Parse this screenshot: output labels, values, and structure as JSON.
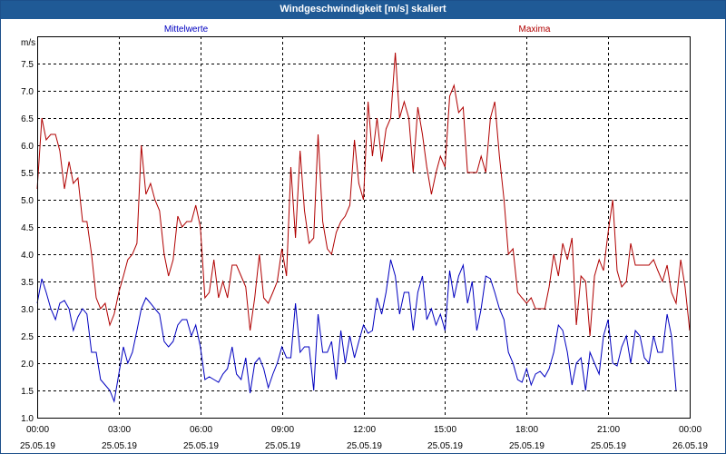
{
  "window": {
    "title": "Windgeschwindigkeit [m/s] skaliert"
  },
  "chart_data": {
    "type": "line",
    "title": "Windgeschwindigkeit [m/s] skaliert",
    "ylabel": "m/s",
    "xlabel": "",
    "ylim": [
      1.0,
      8.0
    ],
    "xlim": [
      0,
      24
    ],
    "grid": true,
    "legend_placement": "top",
    "y_ticks": [
      "1.0",
      "1.5",
      "2.0",
      "2.5",
      "3.0",
      "3.5",
      "4.0",
      "4.5",
      "5.0",
      "5.5",
      "6.0",
      "6.5",
      "7.0",
      "7.5"
    ],
    "x_ticks": [
      {
        "time": "00:00",
        "date": "25.05.19"
      },
      {
        "time": "03:00",
        "date": "25.05.19"
      },
      {
        "time": "06:00",
        "date": "25.05.19"
      },
      {
        "time": "09:00",
        "date": "25.05.19"
      },
      {
        "time": "12:00",
        "date": "25.05.19"
      },
      {
        "time": "15:00",
        "date": "25.05.19"
      },
      {
        "time": "18:00",
        "date": "25.05.19"
      },
      {
        "time": "21:00",
        "date": "25.05.19"
      },
      {
        "time": "00:00",
        "date": "26.05.19"
      }
    ],
    "series": [
      {
        "name": "Mittelwerte",
        "color": "#0000c0",
        "points": [
          [
            0.0,
            3.1
          ],
          [
            0.17,
            3.55
          ],
          [
            0.33,
            3.3
          ],
          [
            0.5,
            3.0
          ],
          [
            0.67,
            2.8
          ],
          [
            0.83,
            3.1
          ],
          [
            1.0,
            3.15
          ],
          [
            1.17,
            3.0
          ],
          [
            1.33,
            2.6
          ],
          [
            1.5,
            2.85
          ],
          [
            1.67,
            3.0
          ],
          [
            1.83,
            2.9
          ],
          [
            2.0,
            2.2
          ],
          [
            2.17,
            2.2
          ],
          [
            2.33,
            1.7
          ],
          [
            2.5,
            1.6
          ],
          [
            2.67,
            1.5
          ],
          [
            2.83,
            1.3
          ],
          [
            3.0,
            1.8
          ],
          [
            3.17,
            2.3
          ],
          [
            3.33,
            2.0
          ],
          [
            3.5,
            2.2
          ],
          [
            3.67,
            2.6
          ],
          [
            3.83,
            3.0
          ],
          [
            4.0,
            3.2
          ],
          [
            4.17,
            3.1
          ],
          [
            4.33,
            3.0
          ],
          [
            4.5,
            2.9
          ],
          [
            4.67,
            2.4
          ],
          [
            4.83,
            2.3
          ],
          [
            5.0,
            2.4
          ],
          [
            5.17,
            2.7
          ],
          [
            5.33,
            2.8
          ],
          [
            5.5,
            2.8
          ],
          [
            5.67,
            2.5
          ],
          [
            5.83,
            2.7
          ],
          [
            6.0,
            2.3
          ],
          [
            6.17,
            1.7
          ],
          [
            6.33,
            1.75
          ],
          [
            6.5,
            1.7
          ],
          [
            6.67,
            1.65
          ],
          [
            6.83,
            1.8
          ],
          [
            7.0,
            1.9
          ],
          [
            7.17,
            2.3
          ],
          [
            7.33,
            1.8
          ],
          [
            7.5,
            1.7
          ],
          [
            7.67,
            2.1
          ],
          [
            7.83,
            1.45
          ],
          [
            8.0,
            2.0
          ],
          [
            8.17,
            2.1
          ],
          [
            8.33,
            1.9
          ],
          [
            8.5,
            1.55
          ],
          [
            8.67,
            1.8
          ],
          [
            8.83,
            2.0
          ],
          [
            9.0,
            2.3
          ],
          [
            9.17,
            2.1
          ],
          [
            9.33,
            2.1
          ],
          [
            9.5,
            3.1
          ],
          [
            9.67,
            2.2
          ],
          [
            9.83,
            2.3
          ],
          [
            10.0,
            2.3
          ],
          [
            10.17,
            1.5
          ],
          [
            10.33,
            2.9
          ],
          [
            10.5,
            2.2
          ],
          [
            10.67,
            2.2
          ],
          [
            10.83,
            2.4
          ],
          [
            11.0,
            1.7
          ],
          [
            11.17,
            2.6
          ],
          [
            11.33,
            2.0
          ],
          [
            11.5,
            2.5
          ],
          [
            11.67,
            2.1
          ],
          [
            11.83,
            2.4
          ],
          [
            12.0,
            2.7
          ],
          [
            12.17,
            2.55
          ],
          [
            12.33,
            2.6
          ],
          [
            12.5,
            3.2
          ],
          [
            12.67,
            2.9
          ],
          [
            12.83,
            3.3
          ],
          [
            13.0,
            3.9
          ],
          [
            13.17,
            3.6
          ],
          [
            13.33,
            2.9
          ],
          [
            13.5,
            3.3
          ],
          [
            13.67,
            3.3
          ],
          [
            13.83,
            2.6
          ],
          [
            14.0,
            3.3
          ],
          [
            14.17,
            3.6
          ],
          [
            14.33,
            2.8
          ],
          [
            14.5,
            3.0
          ],
          [
            14.67,
            2.7
          ],
          [
            14.83,
            2.9
          ],
          [
            15.0,
            2.6
          ],
          [
            15.17,
            3.7
          ],
          [
            15.33,
            3.2
          ],
          [
            15.5,
            3.6
          ],
          [
            15.67,
            3.8
          ],
          [
            15.83,
            3.1
          ],
          [
            16.0,
            3.5
          ],
          [
            16.17,
            2.6
          ],
          [
            16.33,
            3.0
          ],
          [
            16.5,
            3.6
          ],
          [
            16.67,
            3.55
          ],
          [
            16.83,
            3.3
          ],
          [
            17.0,
            3.0
          ],
          [
            17.17,
            2.8
          ],
          [
            17.33,
            2.2
          ],
          [
            17.5,
            2.0
          ],
          [
            17.67,
            1.7
          ],
          [
            17.83,
            1.65
          ],
          [
            18.0,
            1.9
          ],
          [
            18.17,
            1.6
          ],
          [
            18.33,
            1.8
          ],
          [
            18.5,
            1.85
          ],
          [
            18.67,
            1.75
          ],
          [
            18.83,
            1.9
          ],
          [
            19.0,
            2.2
          ],
          [
            19.17,
            2.7
          ],
          [
            19.33,
            2.6
          ],
          [
            19.5,
            2.2
          ],
          [
            19.67,
            1.6
          ],
          [
            19.83,
            2.0
          ],
          [
            20.0,
            2.1
          ],
          [
            20.17,
            1.5
          ],
          [
            20.33,
            2.2
          ],
          [
            20.5,
            2.0
          ],
          [
            20.67,
            1.8
          ],
          [
            20.83,
            2.5
          ],
          [
            21.0,
            2.8
          ],
          [
            21.17,
            2.0
          ],
          [
            21.33,
            1.95
          ],
          [
            21.5,
            2.3
          ],
          [
            21.67,
            2.5
          ],
          [
            21.83,
            2.0
          ],
          [
            22.0,
            2.6
          ],
          [
            22.17,
            2.5
          ],
          [
            22.33,
            2.1
          ],
          [
            22.5,
            2.0
          ],
          [
            22.67,
            2.5
          ],
          [
            22.83,
            2.2
          ],
          [
            23.0,
            2.2
          ],
          [
            23.17,
            2.9
          ],
          [
            23.33,
            2.5
          ],
          [
            23.5,
            1.5
          ]
        ]
      },
      {
        "name": "Maxima",
        "color": "#b00000",
        "points": [
          [
            0.0,
            5.2
          ],
          [
            0.17,
            6.5
          ],
          [
            0.33,
            6.1
          ],
          [
            0.5,
            6.2
          ],
          [
            0.67,
            6.2
          ],
          [
            0.83,
            5.9
          ],
          [
            1.0,
            5.2
          ],
          [
            1.17,
            5.7
          ],
          [
            1.33,
            5.3
          ],
          [
            1.5,
            5.4
          ],
          [
            1.67,
            4.6
          ],
          [
            1.83,
            4.6
          ],
          [
            2.0,
            4.0
          ],
          [
            2.17,
            3.2
          ],
          [
            2.33,
            3.0
          ],
          [
            2.5,
            3.1
          ],
          [
            2.67,
            2.7
          ],
          [
            2.83,
            2.9
          ],
          [
            3.0,
            3.3
          ],
          [
            3.17,
            3.6
          ],
          [
            3.33,
            3.9
          ],
          [
            3.5,
            4.0
          ],
          [
            3.67,
            4.2
          ],
          [
            3.83,
            6.0
          ],
          [
            4.0,
            5.1
          ],
          [
            4.17,
            5.3
          ],
          [
            4.33,
            5.0
          ],
          [
            4.5,
            4.8
          ],
          [
            4.67,
            4.0
          ],
          [
            4.83,
            3.6
          ],
          [
            5.0,
            3.9
          ],
          [
            5.17,
            4.7
          ],
          [
            5.33,
            4.5
          ],
          [
            5.5,
            4.6
          ],
          [
            5.67,
            4.6
          ],
          [
            5.83,
            4.9
          ],
          [
            6.0,
            4.5
          ],
          [
            6.17,
            3.2
          ],
          [
            6.33,
            3.3
          ],
          [
            6.5,
            3.9
          ],
          [
            6.67,
            3.2
          ],
          [
            6.83,
            3.5
          ],
          [
            7.0,
            3.2
          ],
          [
            7.17,
            3.8
          ],
          [
            7.33,
            3.8
          ],
          [
            7.5,
            3.6
          ],
          [
            7.67,
            3.4
          ],
          [
            7.83,
            2.6
          ],
          [
            8.0,
            3.2
          ],
          [
            8.17,
            4.0
          ],
          [
            8.33,
            3.2
          ],
          [
            8.5,
            3.1
          ],
          [
            8.67,
            3.3
          ],
          [
            8.83,
            3.5
          ],
          [
            9.0,
            4.1
          ],
          [
            9.17,
            3.6
          ],
          [
            9.33,
            5.6
          ],
          [
            9.5,
            4.3
          ],
          [
            9.67,
            5.9
          ],
          [
            9.83,
            4.8
          ],
          [
            10.0,
            4.2
          ],
          [
            10.17,
            4.3
          ],
          [
            10.33,
            6.2
          ],
          [
            10.5,
            4.6
          ],
          [
            10.67,
            4.1
          ],
          [
            10.83,
            4.0
          ],
          [
            11.0,
            4.4
          ],
          [
            11.17,
            4.6
          ],
          [
            11.33,
            4.7
          ],
          [
            11.5,
            4.9
          ],
          [
            11.67,
            6.1
          ],
          [
            11.83,
            5.3
          ],
          [
            12.0,
            5.0
          ],
          [
            12.17,
            6.8
          ],
          [
            12.33,
            5.8
          ],
          [
            12.5,
            6.5
          ],
          [
            12.67,
            5.7
          ],
          [
            12.83,
            6.3
          ],
          [
            13.0,
            6.5
          ],
          [
            13.17,
            7.7
          ],
          [
            13.33,
            6.5
          ],
          [
            13.5,
            6.8
          ],
          [
            13.67,
            6.5
          ],
          [
            13.83,
            5.5
          ],
          [
            14.0,
            6.7
          ],
          [
            14.17,
            6.2
          ],
          [
            14.33,
            5.6
          ],
          [
            14.5,
            5.1
          ],
          [
            14.67,
            5.5
          ],
          [
            14.83,
            5.8
          ],
          [
            15.0,
            5.6
          ],
          [
            15.17,
            6.9
          ],
          [
            15.33,
            7.1
          ],
          [
            15.5,
            6.6
          ],
          [
            15.67,
            6.7
          ],
          [
            15.83,
            5.5
          ],
          [
            16.0,
            5.5
          ],
          [
            16.17,
            5.5
          ],
          [
            16.33,
            5.8
          ],
          [
            16.5,
            5.5
          ],
          [
            16.67,
            6.5
          ],
          [
            16.83,
            6.8
          ],
          [
            17.0,
            5.8
          ],
          [
            17.17,
            5.0
          ],
          [
            17.33,
            4.0
          ],
          [
            17.5,
            4.1
          ],
          [
            17.67,
            3.3
          ],
          [
            17.83,
            3.2
          ],
          [
            18.0,
            3.1
          ],
          [
            18.17,
            3.2
          ],
          [
            18.33,
            3.0
          ],
          [
            18.5,
            3.0
          ],
          [
            18.67,
            3.0
          ],
          [
            18.83,
            3.4
          ],
          [
            19.0,
            4.0
          ],
          [
            19.17,
            3.6
          ],
          [
            19.33,
            4.2
          ],
          [
            19.5,
            3.9
          ],
          [
            19.67,
            4.3
          ],
          [
            19.83,
            2.7
          ],
          [
            20.0,
            3.6
          ],
          [
            20.17,
            3.5
          ],
          [
            20.33,
            2.5
          ],
          [
            20.5,
            3.6
          ],
          [
            20.67,
            3.9
          ],
          [
            20.83,
            3.7
          ],
          [
            21.0,
            4.4
          ],
          [
            21.17,
            5.0
          ],
          [
            21.33,
            3.7
          ],
          [
            21.5,
            3.4
          ],
          [
            21.67,
            3.5
          ],
          [
            21.83,
            4.2
          ],
          [
            22.0,
            3.8
          ],
          [
            22.17,
            3.8
          ],
          [
            22.33,
            3.8
          ],
          [
            22.5,
            3.8
          ],
          [
            22.67,
            3.9
          ],
          [
            22.83,
            3.7
          ],
          [
            23.0,
            3.5
          ],
          [
            23.17,
            3.8
          ],
          [
            23.33,
            3.3
          ],
          [
            23.5,
            3.1
          ],
          [
            23.67,
            3.9
          ],
          [
            23.83,
            3.4
          ],
          [
            24.0,
            2.6
          ]
        ]
      }
    ]
  }
}
